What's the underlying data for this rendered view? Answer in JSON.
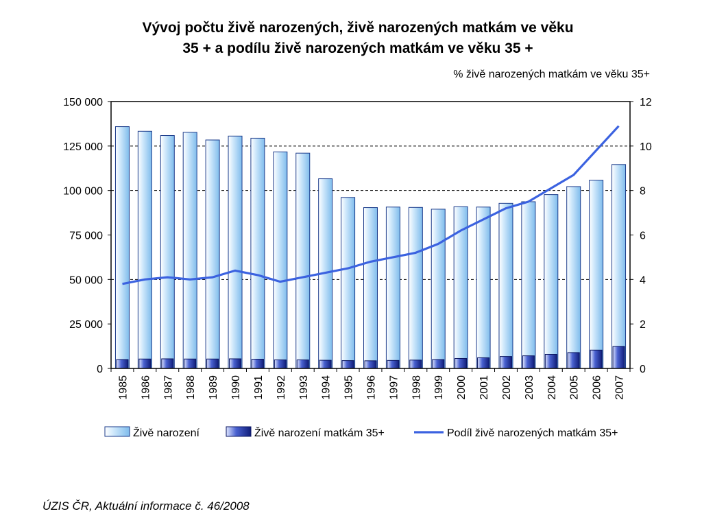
{
  "title_line1": "Vývoj počtu živě narozených, živě narozených matkám ve věku",
  "title_line2": "35 + a podílu živě narozených matkám ve věku 35 +",
  "source": "ÚZIS ČR, Aktuální informace č. 46/2008",
  "chart_data": {
    "type": "bar",
    "title": "Vývoj počtu živě narozených, živě narozených matkám ve věku 35 + a podílu živě narozených matkám ve věku 35 +",
    "y2label": "% živě narozených matkám ve věku 35+",
    "categories": [
      "1985",
      "1986",
      "1987",
      "1988",
      "1989",
      "1990",
      "1991",
      "1992",
      "1993",
      "1994",
      "1995",
      "1996",
      "1997",
      "1998",
      "1999",
      "2000",
      "2001",
      "2002",
      "2003",
      "2004",
      "2005",
      "2006",
      "2007"
    ],
    "ylim": [
      0,
      150000
    ],
    "yticks": [
      0,
      25000,
      50000,
      75000,
      100000,
      125000,
      150000
    ],
    "ytick_labels": [
      "0",
      "25 000",
      "50 000",
      "75 000",
      "100 000",
      "125 000",
      "150 000"
    ],
    "y2lim": [
      0,
      12
    ],
    "y2ticks": [
      0,
      2,
      4,
      6,
      8,
      10,
      12
    ],
    "grid": "dashed horizontal at 50 000, 100 000, 125 000",
    "legend_position": "bottom",
    "series": [
      {
        "name": "Živě narození",
        "type": "bar",
        "axis": "left",
        "color": "#a9d4f5",
        "values": [
          135900,
          133300,
          130900,
          132700,
          128400,
          130600,
          129400,
          121700,
          121000,
          106600,
          96100,
          90400,
          90700,
          90500,
          89500,
          90900,
          90700,
          92800,
          93700,
          97700,
          102200,
          105800,
          114600
        ]
      },
      {
        "name": "Živě narození matkám 35+",
        "type": "bar",
        "axis": "left",
        "color": "#2233aa",
        "values": [
          5000,
          5300,
          5400,
          5300,
          5300,
          5400,
          5200,
          4800,
          4800,
          4600,
          4400,
          4300,
          4500,
          4700,
          5000,
          5600,
          6000,
          6700,
          7100,
          7900,
          8900,
          10300,
          12400
        ]
      },
      {
        "name": "Podíl živě narozených matkám 35+",
        "type": "line",
        "axis": "right",
        "color": "#3b62e0",
        "values": [
          3.8,
          4.0,
          4.1,
          4.0,
          4.1,
          4.4,
          4.2,
          3.9,
          4.1,
          4.3,
          4.5,
          4.8,
          5.0,
          5.2,
          5.6,
          6.2,
          6.7,
          7.2,
          7.5,
          8.1,
          8.7,
          9.8,
          10.9
        ]
      }
    ]
  }
}
